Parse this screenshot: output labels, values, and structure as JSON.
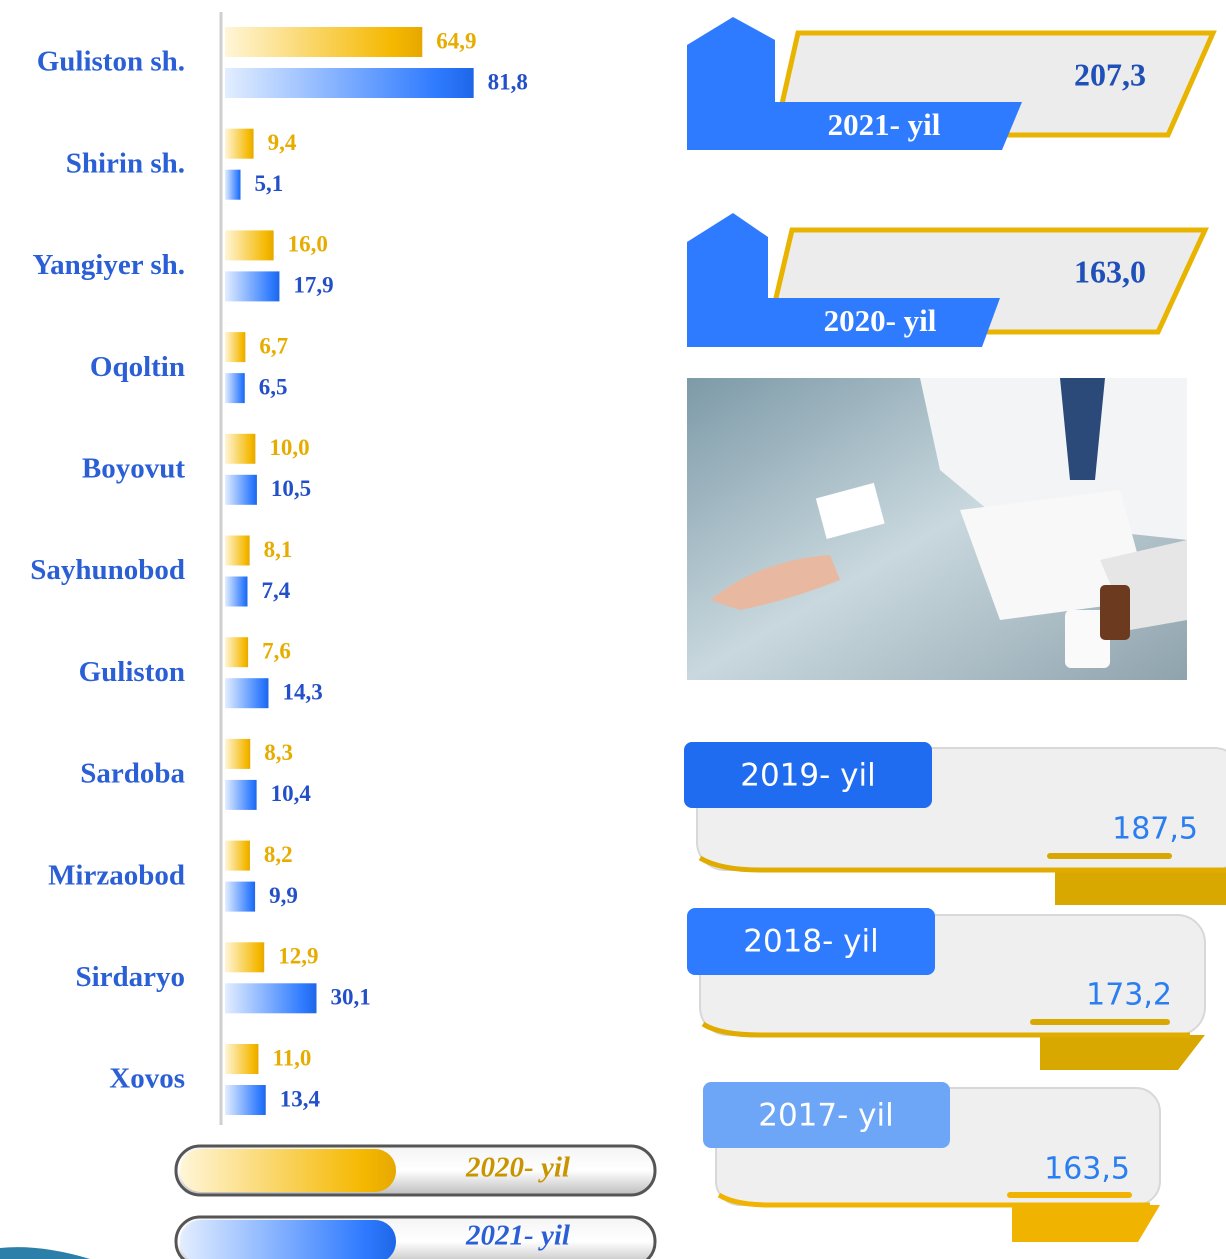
{
  "chart_data": {
    "type": "bar",
    "orientation": "horizontal",
    "categories": [
      "Guliston sh.",
      "Shirin sh.",
      "Yangiyer sh.",
      "Oqoltin",
      "Boyovut",
      "Sayhunobod",
      "Guliston",
      "Sardoba",
      "Mirzaobod",
      "Sirdaryo",
      "Xovos"
    ],
    "series": [
      {
        "name": "2020- yil",
        "color": "#f5b800",
        "values": [
          64.9,
          9.4,
          16.0,
          6.7,
          10.0,
          8.1,
          7.6,
          8.3,
          8.2,
          12.9,
          11.0
        ],
        "value_labels": [
          "64,9",
          "9,4",
          "16,0",
          "6,7",
          "10,0",
          "8,1",
          "7,6",
          "8,3",
          "8,2",
          "12,9",
          "11,0"
        ]
      },
      {
        "name": "2021- yil",
        "color": "#2f7bff",
        "values": [
          81.8,
          5.1,
          17.9,
          6.5,
          10.5,
          7.4,
          14.3,
          10.4,
          9.9,
          30.1,
          13.4
        ],
        "value_labels": [
          "81,8",
          "5,1",
          "17,9",
          "6,5",
          "10,5",
          "7,4",
          "14,3",
          "10,4",
          "9,9",
          "30,1",
          "13,4"
        ]
      }
    ],
    "xlim": [
      0,
      100
    ]
  },
  "summary": [
    {
      "year": "2021- yil",
      "value": "207,3"
    },
    {
      "year": "2020- yil",
      "value": "163,0"
    },
    {
      "year": "2019- yil",
      "value": "187,5"
    },
    {
      "year": "2018- yil",
      "value": "173,2"
    },
    {
      "year": "2017- yil",
      "value": "163,5"
    }
  ]
}
